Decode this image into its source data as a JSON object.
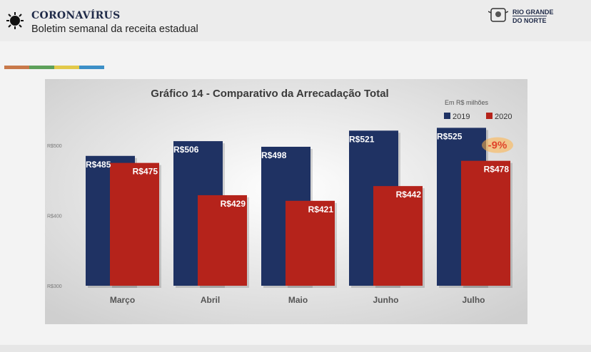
{
  "header": {
    "title": "CORONAVÍRUS",
    "subtitle": "Boletim semanal da receita estadual",
    "logo_line1": "RIO GRANDE",
    "logo_line2": "DO NORTE"
  },
  "stripe_colors": [
    "#c8794a",
    "#5da05a",
    "#e2c94a",
    "#3d8fc7"
  ],
  "colors": {
    "series_2019": "#1f3263",
    "series_2020": "#b5231b",
    "badge": "#e0452b"
  },
  "chart_data": {
    "type": "bar",
    "title": "Gráfico 14 - Comparativo da Arrecadação Total",
    "subtitle": "Em R$ milhões",
    "categories": [
      "Março",
      "Abril",
      "Maio",
      "Junho",
      "Julho"
    ],
    "series": [
      {
        "name": "2019",
        "values": [
          485,
          506,
          498,
          521,
          525
        ],
        "labels": [
          "R$485",
          "R$506",
          "R$498",
          "R$521",
          "R$525"
        ]
      },
      {
        "name": "2020",
        "values": [
          475,
          429,
          421,
          442,
          478
        ],
        "labels": [
          "R$475",
          "R$429",
          "R$421",
          "R$442",
          "R$478"
        ]
      }
    ],
    "yticks": [
      300,
      400,
      500
    ],
    "ytick_labels": [
      "R$300",
      "R$400",
      "R$500"
    ],
    "ylim": [
      300,
      540
    ],
    "legend_position": "top-right",
    "annotation": "-9%",
    "grid": false
  }
}
